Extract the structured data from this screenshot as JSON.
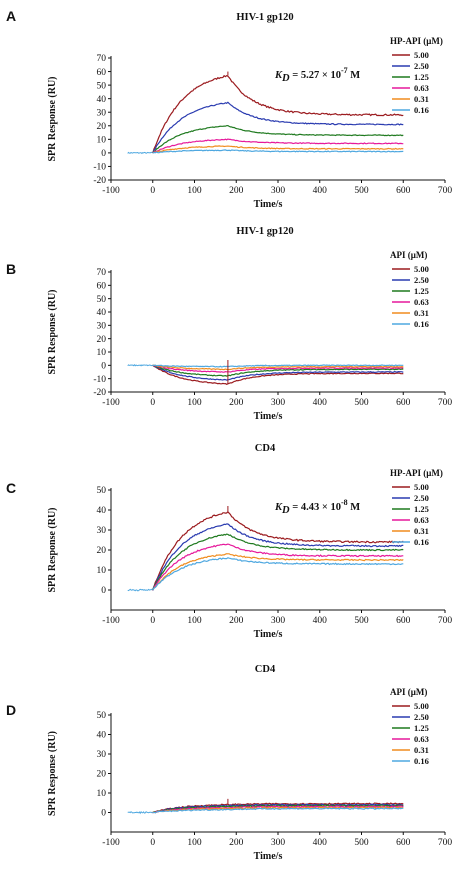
{
  "series_colors": [
    "#9b1b1f",
    "#2a3bb0",
    "#1f7a1f",
    "#e6199b",
    "#f08c1e",
    "#4fa8e0"
  ],
  "chart_data": [
    {
      "panel": "A",
      "type": "line",
      "title": "HIV-1 gp120",
      "xlabel": "Time/s",
      "ylabel": "SPR Response (RU)",
      "xlim": [
        -100,
        700
      ],
      "ylim": [
        -20,
        70
      ],
      "xticks": [
        -100,
        0,
        100,
        200,
        300,
        400,
        500,
        600,
        700
      ],
      "yticks": [
        -20,
        -10,
        0,
        10,
        20,
        30,
        40,
        50,
        60,
        70
      ],
      "legend_title": "HP-API (μM)",
      "legend_position": "top-right",
      "kd": {
        "symbol": "K",
        "sub": "D",
        "text": " = 5.27 × 10",
        "exp": "-7",
        "unit": " M"
      },
      "series": [
        {
          "name": "5.00",
          "peak": 57,
          "end": 28
        },
        {
          "name": "2.50",
          "peak": 37,
          "end": 21
        },
        {
          "name": "1.25",
          "peak": 20,
          "end": 13
        },
        {
          "name": "0.63",
          "peak": 10,
          "end": 7
        },
        {
          "name": "0.31",
          "peak": 5,
          "end": 3
        },
        {
          "name": "0.16",
          "peak": 2,
          "end": 1
        }
      ]
    },
    {
      "panel": "B",
      "type": "line",
      "title": "HIV-1 gp120",
      "xlabel": "Time/s",
      "ylabel": "SPR Response (RU)",
      "xlim": [
        -100,
        700
      ],
      "ylim": [
        -20,
        70
      ],
      "xticks": [
        -100,
        0,
        100,
        200,
        300,
        400,
        500,
        600,
        700
      ],
      "yticks": [
        -20,
        -10,
        0,
        10,
        20,
        30,
        40,
        50,
        60,
        70
      ],
      "legend_title": "API (μM)",
      "legend_position": "top-right",
      "series": [
        {
          "name": "5.00",
          "peak": -14,
          "end": -6
        },
        {
          "name": "2.50",
          "peak": -11,
          "end": -5
        },
        {
          "name": "1.25",
          "peak": -8,
          "end": -3
        },
        {
          "name": "0.63",
          "peak": -5,
          "end": -2
        },
        {
          "name": "0.31",
          "peak": -3,
          "end": -1
        },
        {
          "name": "0.16",
          "peak": -1,
          "end": 0
        }
      ]
    },
    {
      "panel": "C",
      "type": "line",
      "title": "CD4",
      "xlabel": "Time/s",
      "ylabel": "SPR Response (RU)",
      "xlim": [
        -100,
        700
      ],
      "ylim": [
        -10,
        50
      ],
      "xticks": [
        -100,
        0,
        100,
        200,
        300,
        400,
        500,
        600,
        700
      ],
      "yticks": [
        0,
        10,
        20,
        30,
        40,
        50
      ],
      "legend_title": "HP-API (μM)",
      "legend_position": "top-right",
      "kd": {
        "symbol": "K",
        "sub": "D",
        "text": " = 4.43 × 10",
        "exp": "-8",
        "unit": " M"
      },
      "series": [
        {
          "name": "5.00",
          "peak": 39,
          "end": 24
        },
        {
          "name": "2.50",
          "peak": 33,
          "end": 22
        },
        {
          "name": "1.25",
          "peak": 28,
          "end": 20
        },
        {
          "name": "0.63",
          "peak": 23,
          "end": 17
        },
        {
          "name": "0.31",
          "peak": 18,
          "end": 15
        },
        {
          "name": "0.16",
          "peak": 16,
          "end": 13
        }
      ]
    },
    {
      "panel": "D",
      "type": "line",
      "title": "CD4",
      "xlabel": "Time/s",
      "ylabel": "SPR Response (RU)",
      "xlim": [
        -100,
        700
      ],
      "ylim": [
        -10,
        50
      ],
      "xticks": [
        -100,
        0,
        100,
        200,
        300,
        400,
        500,
        600,
        700
      ],
      "yticks": [
        0,
        10,
        20,
        30,
        40,
        50
      ],
      "legend_title": "API (μM)",
      "legend_position": "top-right",
      "series": [
        {
          "name": "5.00",
          "peak": 4,
          "end": 4.5
        },
        {
          "name": "2.50",
          "peak": 3.5,
          "end": 4
        },
        {
          "name": "1.25",
          "peak": 3,
          "end": 3.5
        },
        {
          "name": "0.63",
          "peak": 2.5,
          "end": 3
        },
        {
          "name": "0.31",
          "peak": 2,
          "end": 2.5
        },
        {
          "name": "0.16",
          "peak": 1.5,
          "end": 2
        }
      ]
    }
  ]
}
